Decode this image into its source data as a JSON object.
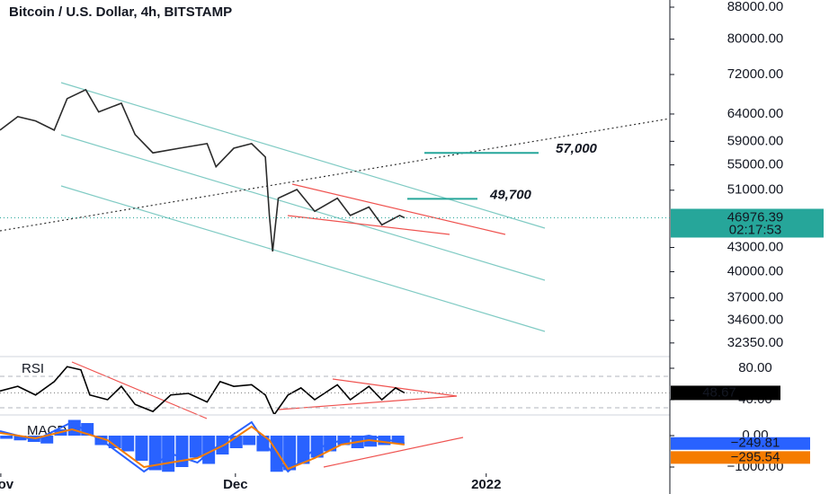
{
  "chart_data": [
    {
      "type": "line",
      "title": "Bitcoin / U.S. Dollar, 4h, BITSTAMP",
      "log_scale": true,
      "x": [
        0.9,
        3.1,
        5.3,
        7.6,
        9.2,
        11.5,
        13.1,
        15.9,
        17.6,
        19.8,
        23.1,
        26.5,
        27.6,
        29.8,
        32.0,
        33.7,
        34.2,
        34.6,
        35.3,
        37.6,
        39.8,
        42.6,
        44.2,
        46.5,
        48.1,
        50.3,
        50.9
      ],
      "series": [
        {
          "color": "#2b2b2b",
          "values": [
            61000,
            63500,
            62700,
            61000,
            67000,
            68800,
            64400,
            66100,
            60200,
            57000,
            57800,
            58600,
            54700,
            57800,
            58600,
            56300,
            47300,
            42500,
            49800,
            51100,
            47900,
            49800,
            47300,
            48500,
            46000,
            47300,
            46976.39
          ]
        }
      ],
      "xlim": [
        0.9,
        83.7
      ],
      "ylim": [
        31230,
        89900
      ],
      "yticks": [
        {
          "value": 88000,
          "label": "88000.00"
        },
        {
          "value": 80000,
          "label": "80000.00"
        },
        {
          "value": 72000,
          "label": "72000.00"
        },
        {
          "value": 64000,
          "label": "64000.00"
        },
        {
          "value": 59000,
          "label": "59000.00"
        },
        {
          "value": 55000,
          "label": "55000.00"
        },
        {
          "value": 51000,
          "label": "51000.00"
        },
        {
          "value": 43000,
          "label": "43000.00"
        },
        {
          "value": 40000,
          "label": "40000.00"
        },
        {
          "value": 37000,
          "label": "37000.00"
        },
        {
          "value": 34600,
          "label": "34600.00"
        },
        {
          "value": 32350,
          "label": "32350.00"
        }
      ],
      "annotations": [
        {
          "value": 57000,
          "label": "57,000"
        },
        {
          "value": 49700,
          "label": "49,700"
        }
      ],
      "last_price": 46976.39,
      "countdown": "02:17:53"
    },
    {
      "type": "line",
      "title": "RSI",
      "x": [
        0.9,
        3.1,
        5.3,
        7.6,
        9.2,
        10.9,
        12.0,
        14.2,
        15.9,
        17.6,
        19.8,
        22.0,
        24.2,
        26.5,
        28.1,
        29.8,
        32.0,
        33.7,
        34.8,
        36.5,
        38.1,
        39.8,
        42.6,
        44.2,
        46.5,
        48.1,
        49.8,
        50.9
      ],
      "series": [
        {
          "color": "#000000",
          "values": [
            51,
            57,
            46,
            63,
            82,
            78,
            46,
            40,
            57,
            34,
            25,
            46,
            48,
            37,
            63,
            57,
            59,
            46,
            21,
            46,
            55,
            40,
            59,
            40,
            57,
            40,
            55,
            48.67
          ]
        }
      ],
      "xlim": [
        0.9,
        83.7
      ],
      "ylim": [
        20.6,
        93.7
      ],
      "yticks": [
        {
          "value": 80,
          "label": "80.00"
        },
        {
          "value": 40,
          "label": "40.00"
        }
      ],
      "last_value": 48.67
    },
    {
      "type": "macd",
      "title": "MACD",
      "bar_x": [
        1.7,
        3.4,
        5.1,
        6.7,
        8.4,
        10.1,
        11.7,
        13.4,
        15.1,
        16.7,
        18.4,
        20.1,
        21.7,
        23.4,
        25.1,
        26.7,
        28.4,
        30.1,
        31.7,
        33.4,
        35.1,
        36.7,
        38.4,
        40.1,
        41.7,
        43.4,
        45.1,
        46.7,
        48.4,
        50.1
      ],
      "histogram": {
        "color": "#2962ff",
        "values": [
          -100,
          -150,
          -200,
          -250,
          200,
          500,
          400,
          -300,
          -400,
          -500,
          -800,
          -1100,
          -1150,
          -1000,
          -700,
          -900,
          -600,
          -400,
          -300,
          -500,
          -1150,
          -1100,
          -900,
          -700,
          -500,
          -300,
          -400,
          -350,
          -300,
          -250
        ]
      },
      "x": [
        0.9,
        5.3,
        9.8,
        14.2,
        18.7,
        22.0,
        25.3,
        28.7,
        32.0,
        34.2,
        36.5,
        39.8,
        43.1,
        46.5,
        50.9
      ],
      "series": [
        {
          "color": "#2962ff",
          "values": [
            143,
            -143,
            429,
            -286,
            -1143,
            -571,
            -857,
            -143,
            429,
            -429,
            -1143,
            -429,
            -143,
            0,
            -250
          ],
          "last_value": {
            "value": -249.81,
            "label": "−249.81"
          }
        },
        {
          "color": "#f57c00",
          "values": [
            86,
            -86,
            200,
            -143,
            -1000,
            -857,
            -714,
            -286,
            286,
            -143,
            -1057,
            -714,
            -286,
            -143,
            -286
          ],
          "last_value": {
            "value": -295.54,
            "label": "−295.54"
          }
        }
      ],
      "xlim": [
        0.9,
        83.7
      ],
      "ylim": [
        -1200,
        629
      ],
      "yticks": [
        {
          "value": 0,
          "label": "0.00"
        },
        {
          "value": -1000,
          "label": "−1000.00"
        }
      ],
      "xticks": [
        {
          "value": 1,
          "label": "Nov"
        },
        {
          "value": 30,
          "label": "Dec"
        },
        {
          "value": 61,
          "label": "2022"
        }
      ]
    }
  ]
}
